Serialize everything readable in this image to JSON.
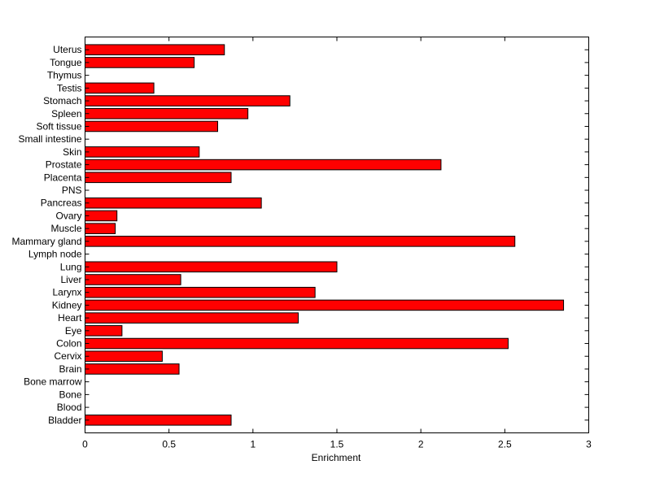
{
  "chart_data": {
    "type": "bar",
    "orientation": "horizontal",
    "title": "",
    "xlabel": "Enrichment",
    "ylabel": "",
    "xlim": [
      0,
      3
    ],
    "xticks": [
      "0",
      "0.5",
      "1",
      "1.5",
      "2",
      "2.5",
      "3"
    ],
    "grid": false,
    "bar_color": "#ff0000",
    "categories": [
      "Bladder",
      "Blood",
      "Bone",
      "Bone marrow",
      "Brain",
      "Cervix",
      "Colon",
      "Eye",
      "Heart",
      "Kidney",
      "Larynx",
      "Liver",
      "Lung",
      "Lymph node",
      "Mammary gland",
      "Muscle",
      "Ovary",
      "Pancreas",
      "PNS",
      "Placenta",
      "Prostate",
      "Skin",
      "Small intestine",
      "Soft tissue",
      "Spleen",
      "Stomach",
      "Testis",
      "Thymus",
      "Tongue",
      "Uterus"
    ],
    "values": [
      0.87,
      0,
      0,
      0,
      0.56,
      0.46,
      2.52,
      0.22,
      1.27,
      2.85,
      1.37,
      0.57,
      1.5,
      0,
      2.56,
      0.18,
      0.19,
      1.05,
      0,
      0.87,
      2.12,
      0.68,
      0,
      0.79,
      0.97,
      1.22,
      0.41,
      0,
      0.65,
      0.83
    ]
  }
}
